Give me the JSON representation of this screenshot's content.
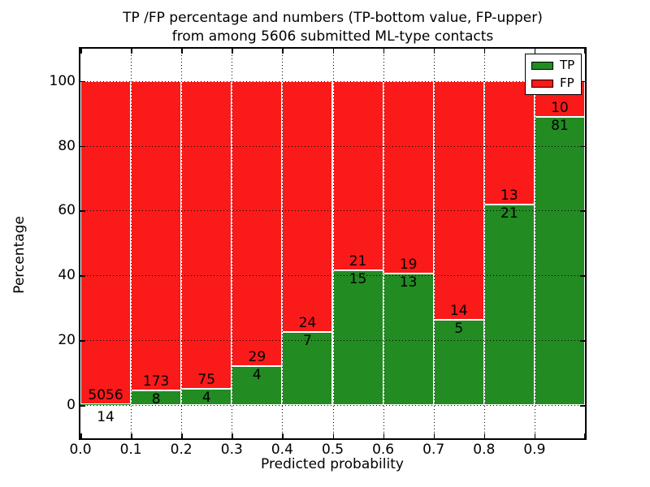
{
  "title": {
    "line1": "TP /FP percentage and numbers (TP-bottom value, FP-upper)",
    "line2": "from among 5606 submitted ML-type contacts"
  },
  "axes": {
    "ylabel": "Percentage",
    "xlabel": "Predicted probability",
    "ytick_labels": [
      "0",
      "20",
      "40",
      "60",
      "80",
      "100"
    ],
    "ytick_values": [
      0,
      20,
      40,
      60,
      80,
      100
    ],
    "xtick_labels": [
      "0.0",
      "0.1",
      "0.2",
      "0.3",
      "0.4",
      "0.5",
      "0.6",
      "0.7",
      "0.8",
      "0.9"
    ]
  },
  "legend": {
    "items": [
      {
        "label": "TP",
        "color": "#228b22"
      },
      {
        "label": "FP",
        "color": "#fa1a1a"
      }
    ]
  },
  "colors": {
    "tp_green": "#228b22",
    "fp_red": "#fa1a1a",
    "bar_edge": "#ffffff",
    "grid": "#000000"
  },
  "chart_data": {
    "type": "bar",
    "stacked": true,
    "title": "TP /FP percentage and numbers (TP-bottom value, FP-upper) from among 5606 submitted ML-type contacts",
    "xlabel": "Predicted probability",
    "ylabel": "Percentage",
    "xlim": [
      0.0,
      1.0
    ],
    "ylim": [
      -10,
      110
    ],
    "grid": "dotted",
    "legend_position": "upper right",
    "bin_edges": [
      0.0,
      0.1,
      0.2,
      0.3,
      0.4,
      0.5,
      0.6,
      0.7,
      0.8,
      0.9,
      1.0
    ],
    "categories": [
      "0.0-0.1",
      "0.1-0.2",
      "0.2-0.3",
      "0.3-0.4",
      "0.4-0.5",
      "0.5-0.6",
      "0.6-0.7",
      "0.7-0.8",
      "0.8-0.9",
      "0.9-1.0"
    ],
    "series": [
      {
        "name": "TP",
        "color": "#228b22",
        "counts": [
          14,
          8,
          4,
          4,
          7,
          15,
          13,
          5,
          21,
          81
        ],
        "percent": [
          0.28,
          4.42,
          5.06,
          12.12,
          22.58,
          41.67,
          40.63,
          26.32,
          61.76,
          89.01
        ]
      },
      {
        "name": "FP",
        "color": "#fa1a1a",
        "counts": [
          5056,
          173,
          75,
          29,
          24,
          21,
          19,
          14,
          13,
          10
        ],
        "percent": [
          99.72,
          95.58,
          94.94,
          87.88,
          77.42,
          58.33,
          59.37,
          73.68,
          38.24,
          10.99
        ]
      }
    ]
  }
}
